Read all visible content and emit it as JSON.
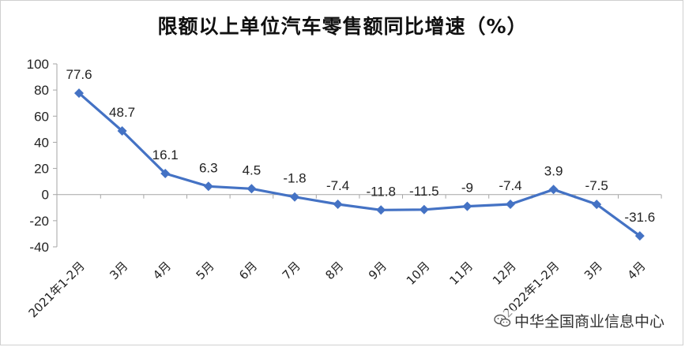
{
  "chart_data": {
    "type": "line",
    "title": "限额以上单位汽车零售额同比增速（%）",
    "xlabel": "",
    "ylabel": "",
    "categories": [
      "2021年1-2月",
      "3月",
      "4月",
      "5月",
      "6月",
      "7月",
      "8月",
      "9月",
      "10月",
      "11月",
      "12月",
      "2022年1-2月",
      "3月",
      "4月"
    ],
    "values": [
      77.6,
      48.7,
      16.1,
      6.3,
      4.5,
      -1.8,
      -7.4,
      -11.8,
      -11.5,
      -9,
      -7.4,
      3.9,
      -7.5,
      -31.6
    ],
    "data_labels": [
      "77.6",
      "48.7",
      "16.1",
      "6.3",
      "4.5",
      "-1.8",
      "-7.4",
      "-11.8",
      "-11.5",
      "-9",
      "-7.4",
      "3.9",
      "-7.5",
      "-31.6"
    ],
    "ylim": [
      -40,
      100
    ],
    "yticks": [
      100,
      80,
      60,
      40,
      20,
      0,
      -20,
      -40
    ],
    "grid": false,
    "legend": "none",
    "line_color": "#4472C4"
  },
  "watermark": {
    "text": "中华全国商业信息中心",
    "icon": "wechat-icon"
  }
}
